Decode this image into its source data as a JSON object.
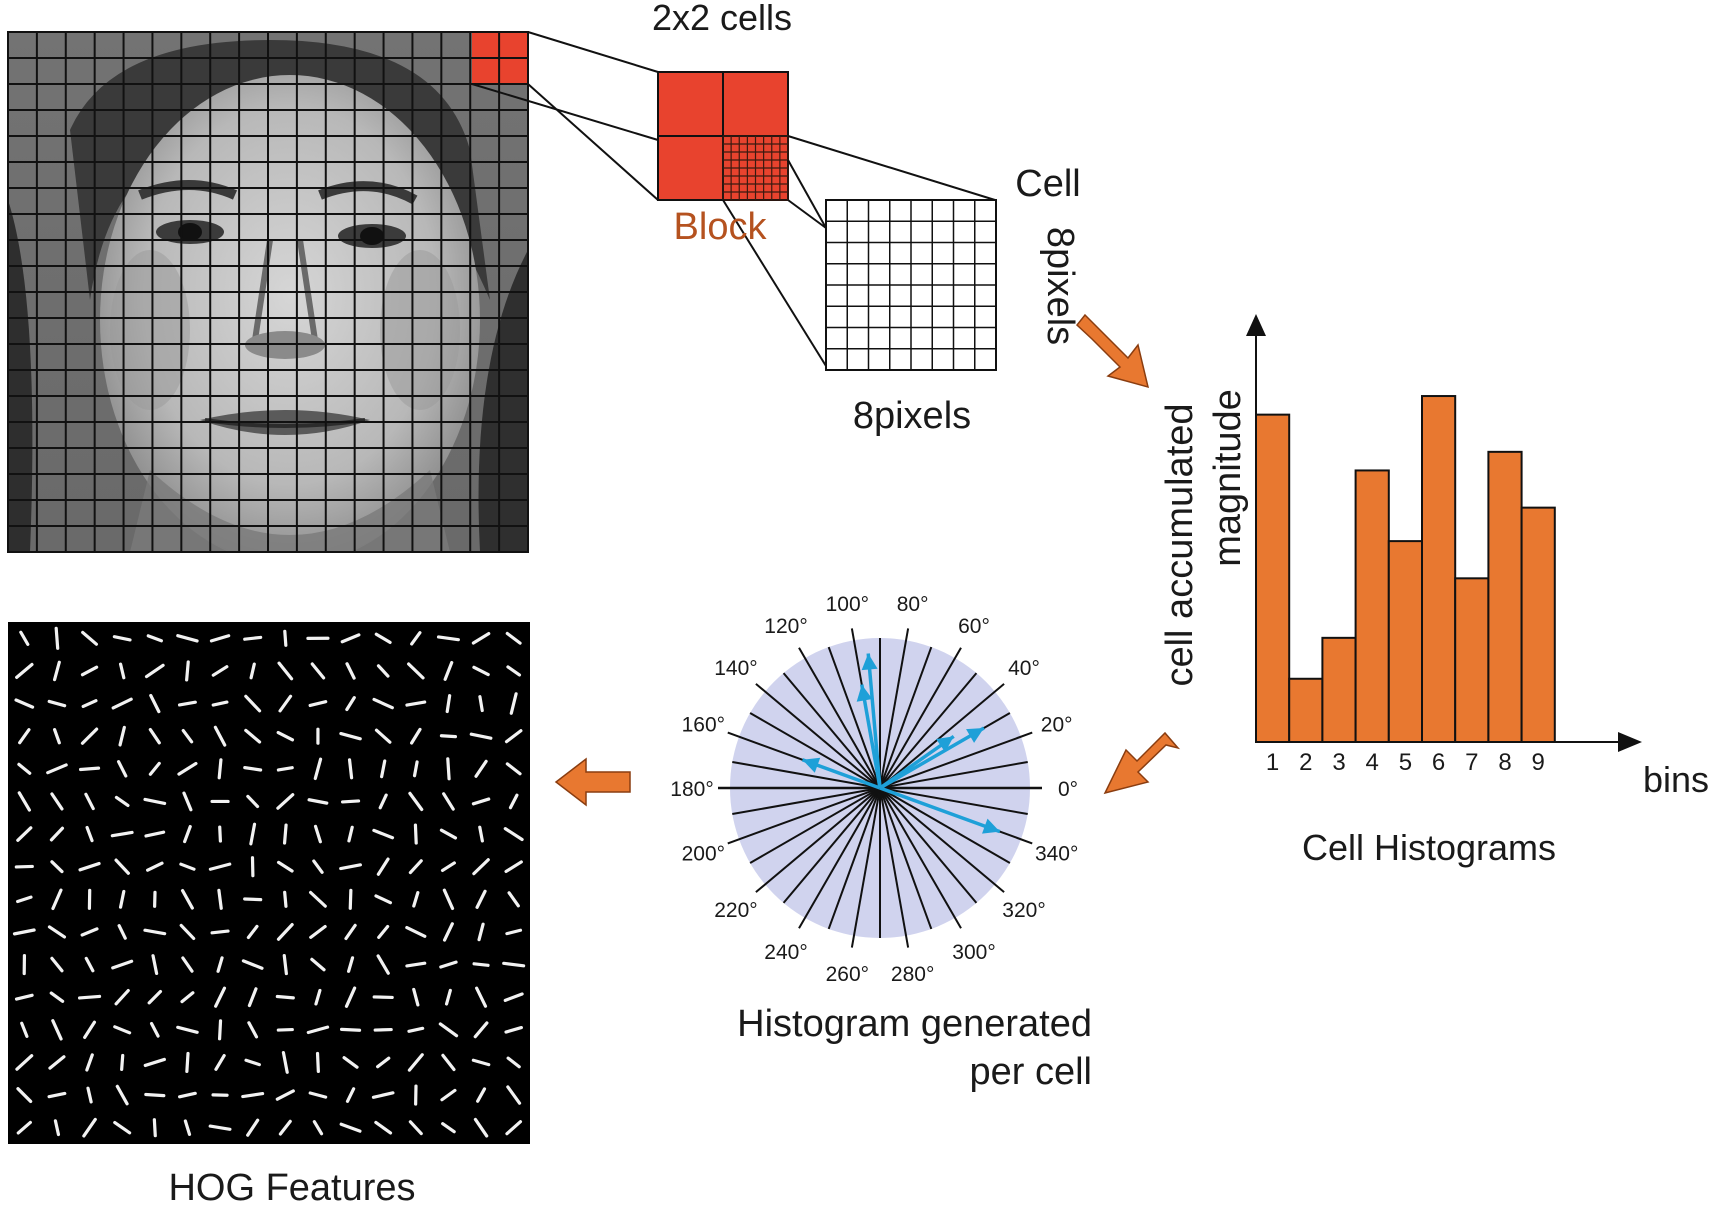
{
  "labels": {
    "cells_2x2": "2x2 cells",
    "block": "Block",
    "cell": "Cell",
    "pixels_vertical": "8pixels",
    "pixels_horizontal": "8pixels",
    "hist_ylabel_line1": "cell accumulated",
    "hist_ylabel_line2": "magnitude",
    "hist_xlabel": "bins",
    "cell_histograms": "Cell Histograms",
    "histogram_generated_line1": "Histogram generated",
    "histogram_generated_line2": "per cell",
    "hog_features": "HOG Features"
  },
  "colors": {
    "orange": "#E87830",
    "block_red": "#E8432E",
    "block_text": "#B5521F",
    "disc_fill": "#D0D3EE",
    "arrow_blue": "#1EA0D8"
  },
  "chart_data": {
    "type": "bar",
    "categories": [
      "1",
      "2",
      "3",
      "4",
      "5",
      "6",
      "7",
      "8",
      "9"
    ],
    "values": [
      0.88,
      0.17,
      0.28,
      0.73,
      0.54,
      0.93,
      0.44,
      0.78,
      0.63
    ],
    "xlabel": "bins",
    "ylabel": "cell accumulated magnitude",
    "title": "Cell Histograms"
  },
  "polar_histogram": {
    "angle_labels": [
      "0°",
      "20°",
      "40°",
      "60°",
      "80°",
      "100°",
      "120°",
      "140°",
      "160°",
      "180°",
      "200°",
      "220°",
      "240°",
      "260°",
      "280°",
      "300°",
      "320°",
      "340°"
    ],
    "arrows": [
      {
        "angle_deg": 95,
        "magnitude": 0.9
      },
      {
        "angle_deg": 100,
        "magnitude": 0.7
      },
      {
        "angle_deg": 30,
        "magnitude": 0.8
      },
      {
        "angle_deg": 35,
        "magnitude": 0.6
      },
      {
        "angle_deg": 160,
        "magnitude": 0.55
      },
      {
        "angle_deg": 340,
        "magnitude": 0.85
      }
    ]
  }
}
